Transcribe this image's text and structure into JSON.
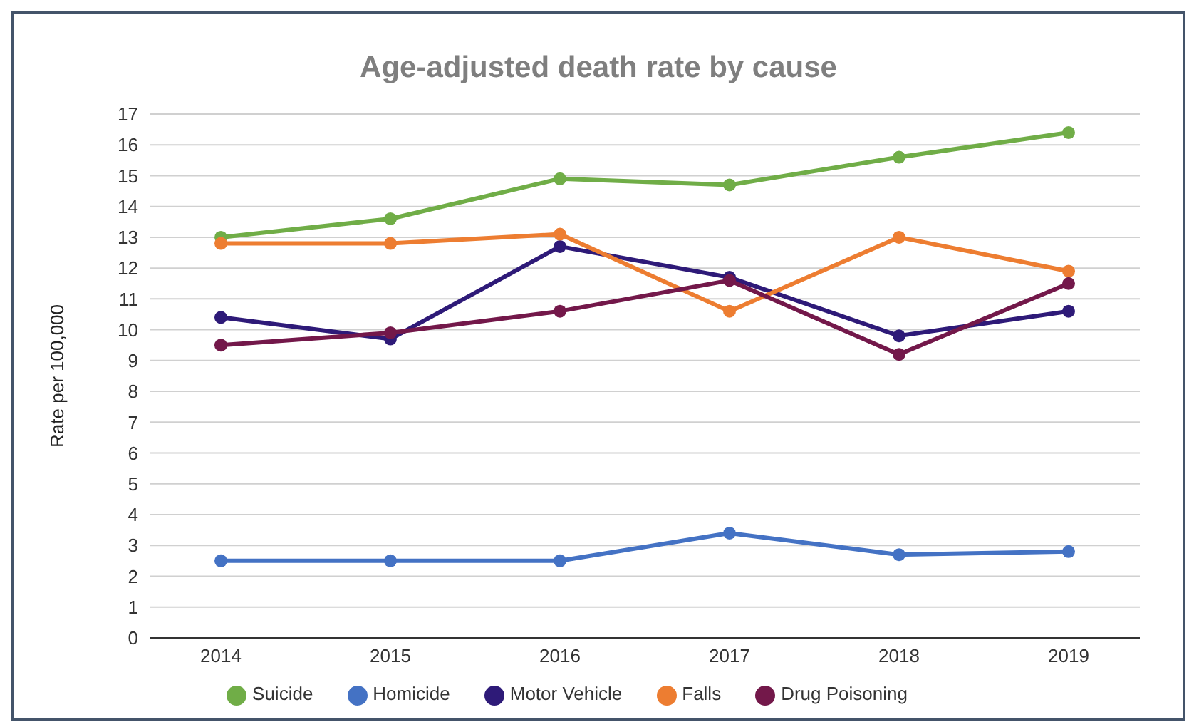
{
  "chart_data": {
    "type": "line",
    "title": "Age-adjusted death rate by cause",
    "ylabel": "Rate per 100,000",
    "categories": [
      "2014",
      "2015",
      "2016",
      "2017",
      "2018",
      "2019"
    ],
    "series": [
      {
        "name": "Suicide",
        "color": "#70ad47",
        "values": [
          13.0,
          13.6,
          14.9,
          14.7,
          15.6,
          16.4
        ]
      },
      {
        "name": "Homicide",
        "color": "#4472c4",
        "values": [
          2.5,
          2.5,
          2.5,
          3.4,
          2.7,
          2.8
        ]
      },
      {
        "name": "Motor Vehicle",
        "color": "#2e1a78",
        "values": [
          10.4,
          9.7,
          12.7,
          11.7,
          9.8,
          10.6
        ]
      },
      {
        "name": "Falls",
        "color": "#ed7d31",
        "values": [
          12.8,
          12.8,
          13.1,
          10.6,
          13.0,
          11.9
        ]
      },
      {
        "name": "Drug Poisoning",
        "color": "#73184a",
        "values": [
          9.5,
          9.9,
          10.6,
          11.6,
          9.2,
          11.5
        ]
      }
    ],
    "ylim": [
      0,
      17
    ],
    "yticks": [
      0,
      1,
      2,
      3,
      4,
      5,
      6,
      7,
      8,
      9,
      10,
      11,
      12,
      13,
      14,
      15,
      16,
      17
    ],
    "grid": "y",
    "legend": "bottom",
    "marker": "circle",
    "line_style": "solid"
  }
}
